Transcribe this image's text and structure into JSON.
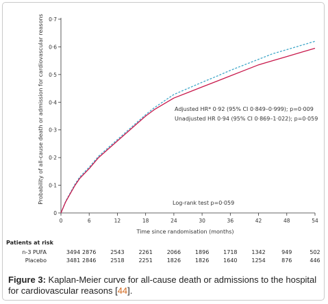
{
  "chart_data": {
    "type": "line",
    "title": "",
    "xlabel": "Time since randomisation (months)",
    "ylabel": "Probability of all-cause death or admission for cardiovascular reasons",
    "xlim": [
      0,
      54
    ],
    "ylim": [
      0,
      0.7
    ],
    "x_ticks": [
      0,
      6,
      12,
      18,
      24,
      30,
      36,
      42,
      48,
      54
    ],
    "y_ticks": [
      0,
      0.1,
      0.2,
      0.3,
      0.4,
      0.5,
      0.6,
      0.7
    ],
    "x_tick_labels": [
      "0",
      "6",
      "12",
      "18",
      "24",
      "30",
      "36",
      "42",
      "48",
      "54"
    ],
    "y_tick_labels": [
      "0",
      "0·1",
      "0·2",
      "0·3",
      "0·4",
      "0·5",
      "0·6",
      "0·7"
    ],
    "grid": false,
    "series": [
      {
        "name": "n-3 PUFA",
        "color": "#c8174a",
        "style": "solid",
        "x": [
          0,
          1,
          2,
          3,
          4,
          6,
          8,
          10,
          12,
          14,
          16,
          18,
          20,
          22,
          24,
          27,
          30,
          33,
          36,
          39,
          42,
          45,
          48,
          51,
          54
        ],
        "y": [
          0,
          0.04,
          0.07,
          0.1,
          0.125,
          0.16,
          0.2,
          0.23,
          0.26,
          0.29,
          0.32,
          0.35,
          0.375,
          0.395,
          0.415,
          0.435,
          0.455,
          0.475,
          0.495,
          0.515,
          0.535,
          0.55,
          0.565,
          0.58,
          0.595
        ]
      },
      {
        "name": "Placebo",
        "color": "#3fa7c9",
        "style": "dashed",
        "x": [
          0,
          1,
          2,
          3,
          4,
          6,
          8,
          10,
          12,
          14,
          16,
          18,
          20,
          22,
          24,
          27,
          30,
          33,
          36,
          39,
          42,
          45,
          48,
          51,
          54
        ],
        "y": [
          0,
          0.042,
          0.073,
          0.104,
          0.13,
          0.165,
          0.205,
          0.235,
          0.265,
          0.295,
          0.325,
          0.355,
          0.382,
          0.405,
          0.428,
          0.45,
          0.472,
          0.493,
          0.515,
          0.535,
          0.555,
          0.575,
          0.59,
          0.605,
          0.62
        ]
      }
    ],
    "annotations": [
      "Adjusted HR* 0·92 (95% CI 0·849–0·999); p=0·009",
      "Unadjusted HR 0·94 (95% CI 0·869–1·022); p=0·059",
      "Log-rank test p=0·059"
    ]
  },
  "risk_table": {
    "title": "Patients at risk",
    "rows": [
      {
        "label": "n-3 PUFA",
        "values": [
          "3494",
          "2876",
          "2543",
          "2261",
          "2066",
          "1896",
          "1718",
          "1342",
          "949",
          "502"
        ]
      },
      {
        "label": "Placebo",
        "values": [
          "3481",
          "2846",
          "2518",
          "2251",
          "1826",
          "1826",
          "1640",
          "1254",
          "876",
          "446"
        ]
      }
    ]
  },
  "caption": {
    "figure_label": "Figure 3:",
    "text": " Kaplan-Meier curve for all-cause death or admissions to the hospital for cardiovascular reasons [",
    "ref": "44",
    "end": "]."
  }
}
